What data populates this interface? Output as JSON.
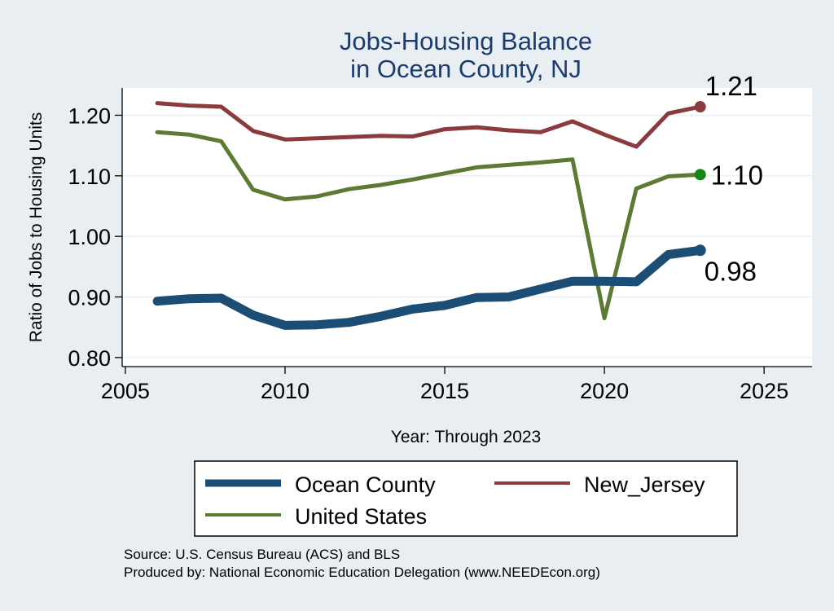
{
  "chart_data": {
    "type": "line",
    "title": [
      "Jobs-Housing Balance",
      "in Ocean County, NJ"
    ],
    "xlabel": "Year: Through 2023",
    "ylabel": "Ratio of Jobs to Housing Units",
    "xlim": [
      2004.9,
      2026.5
    ],
    "ylim": [
      0.785,
      1.245
    ],
    "xticks": [
      2005,
      2010,
      2015,
      2020,
      2025
    ],
    "yticks": [
      0.8,
      0.9,
      1.0,
      1.1,
      1.2
    ],
    "ytick_labels": [
      "0.80",
      "0.90",
      "1.00",
      "1.10",
      "1.20"
    ],
    "grid": true,
    "x": [
      2006,
      2007,
      2008,
      2009,
      2010,
      2011,
      2012,
      2013,
      2014,
      2015,
      2016,
      2017,
      2018,
      2019,
      2020,
      2021,
      2022,
      2023
    ],
    "series": [
      {
        "name": "New_Jersey",
        "color": "#8b3a3e",
        "values": [
          1.22,
          1.216,
          1.214,
          1.174,
          1.16,
          1.162,
          1.164,
          1.166,
          1.165,
          1.177,
          1.18,
          1.175,
          1.172,
          1.19,
          1.168,
          1.148,
          1.203,
          1.214
        ],
        "end_label": "1.21",
        "end_marker_color": "#8b3a3e"
      },
      {
        "name": "United States",
        "color": "#5b7a33",
        "values": [
          1.172,
          1.168,
          1.157,
          1.077,
          1.061,
          1.066,
          1.078,
          1.085,
          1.094,
          1.104,
          1.114,
          1.118,
          1.122,
          1.127,
          0.865,
          1.079,
          1.099,
          1.102
        ],
        "end_label": "1.10",
        "end_marker_color": "#138613"
      },
      {
        "name": "Ocean County",
        "color": "#1c4d74",
        "values": [
          0.893,
          0.897,
          0.898,
          0.87,
          0.853,
          0.854,
          0.858,
          0.868,
          0.88,
          0.886,
          0.899,
          0.9,
          0.913,
          0.926,
          0.926,
          0.925,
          0.97,
          0.977
        ],
        "end_label": "0.98",
        "end_marker_color": "#1c4d74"
      }
    ],
    "legend": {
      "placement": "bottom",
      "entries": [
        "Ocean County",
        "New_Jersey",
        "United States"
      ]
    },
    "source_note": "Source: U.S. Census Bureau (ACS) and BLS",
    "producer_note": "Produced by: National Economic Education Delegation (www.NEEDEcon.org)"
  }
}
